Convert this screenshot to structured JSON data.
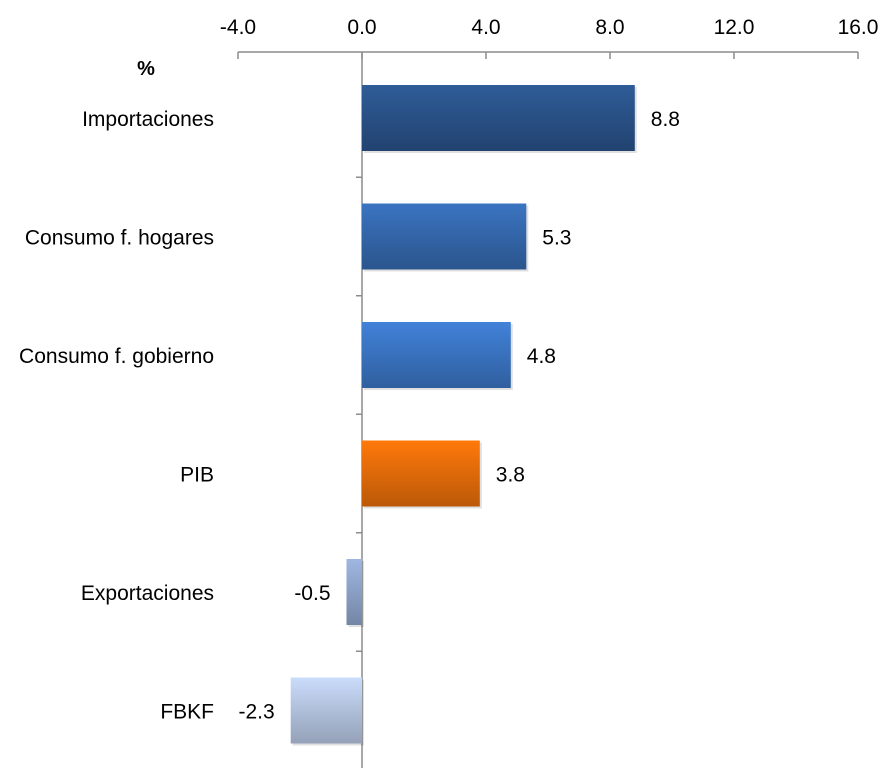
{
  "chart_data": {
    "type": "bar",
    "orientation": "horizontal",
    "unit_label": "%",
    "categories": [
      "Importaciones",
      "Consumo f. hogares",
      "Consumo f. gobierno",
      "PIB",
      "Exportaciones",
      "FBKF"
    ],
    "values": [
      8.8,
      5.3,
      4.8,
      3.8,
      -0.5,
      -2.3
    ],
    "value_labels": [
      "8.8",
      "5.3",
      "4.8",
      "3.8",
      "-0.5",
      "-2.3"
    ],
    "x_ticks": [
      "-4.0",
      "0.0",
      "4.0",
      "8.0",
      "12.0",
      "16.0"
    ],
    "xlim": [
      -4,
      16
    ],
    "axis_position": "top",
    "grid": false,
    "legend": "none",
    "colors": [
      "#2a5288",
      "#3468ac",
      "#3a74c2",
      "#e46c0a",
      "#8ea3c9",
      "#b4c4e0"
    ]
  }
}
